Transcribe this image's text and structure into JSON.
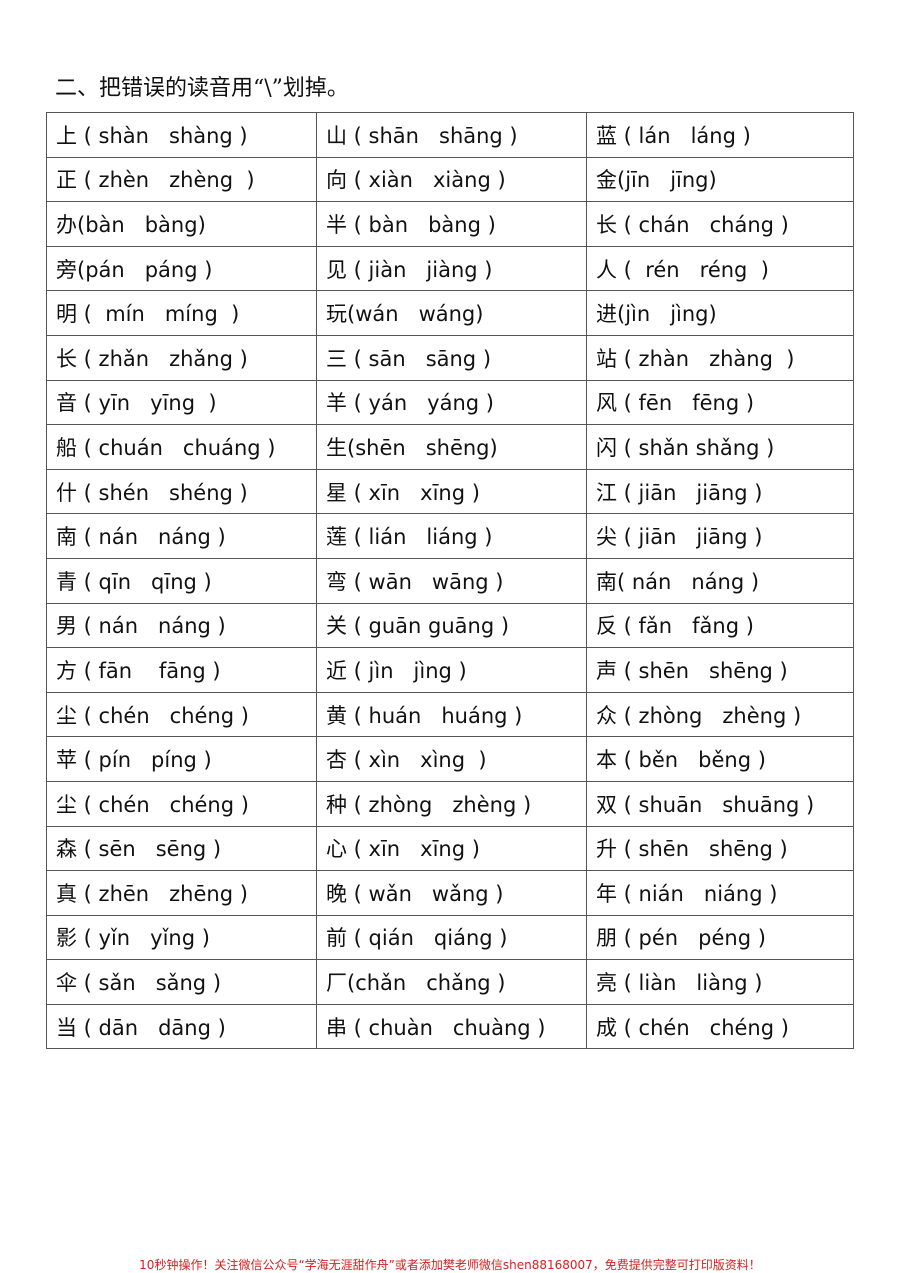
{
  "title": "二、把错误的读音用“\\”划掉。",
  "rows": [
    [
      "上 ( shàn   shàng )",
      "山 ( shān   shāng )",
      "蓝 ( lán   láng )"
    ],
    [
      "正 ( zhèn   zhèng  )",
      "向 ( xiàn   xiàng )",
      "金(jīn   jīng)"
    ],
    [
      "办(bàn   bàng)",
      "半 ( bàn   bàng )",
      "长 ( chán   cháng )"
    ],
    [
      "旁(pán   páng )",
      "见 ( jiàn   jiàng )",
      "人 (  rén   réng  )"
    ],
    [
      "明 (  mín   míng  )",
      "玩(wán   wáng)",
      "进(jìn   jìng)"
    ],
    [
      "长 ( zhǎn   zhǎng )",
      "三 ( sān   sāng )",
      "站 ( zhàn   zhàng  )"
    ],
    [
      "音 ( yīn   yīng  )",
      "羊 ( yán   yáng )",
      "风 ( fēn   fēng )"
    ],
    [
      "船 ( chuán   chuáng )",
      "生(shēn   shēng)",
      "闪 ( shǎn shǎng )"
    ],
    [
      "什 ( shén   shéng )",
      "星 ( xīn   xīng )",
      "江 ( jiān   jiāng )"
    ],
    [
      "南 ( nán   náng )",
      "莲 ( lián   liáng )",
      "尖 ( jiān   jiāng )"
    ],
    [
      "青 ( qīn   qīng )",
      "弯 ( wān   wāng )",
      "南( nán   náng )"
    ],
    [
      "男 ( nán   náng )",
      "关 ( guān guāng )",
      "反 ( fǎn   fǎng )"
    ],
    [
      "方 ( fān    fāng )",
      "近 ( jìn   jìng )",
      "声 ( shēn   shēng )"
    ],
    [
      "尘 ( chén   chéng )",
      "黄 ( huán   huáng )",
      "众 ( zhòng   zhèng )"
    ],
    [
      "苹 ( pín   píng )",
      "杏 ( xìn   xìng  )",
      "本 ( běn   běng )"
    ],
    [
      "尘 ( chén   chéng )",
      "种 ( zhòng   zhèng )",
      "双 ( shuān   shuāng )"
    ],
    [
      "森 ( sēn   sēng )",
      "心 ( xīn   xīng )",
      "升 ( shēn   shēng )"
    ],
    [
      "真 ( zhēn   zhēng )",
      "晚 ( wǎn   wǎng )",
      "年 ( nián   niáng )"
    ],
    [
      "影 ( yǐn   yǐng )",
      "前 ( qián   qiáng )",
      "朋 ( pén   péng )"
    ],
    [
      "伞 ( sǎn   sǎng )",
      "厂(chǎn   chǎng )",
      "亮 ( liàn   liàng )"
    ],
    [
      "当 ( dān   dāng )",
      "串 ( chuàn   chuàng )",
      "成 ( chén   chéng )"
    ]
  ],
  "footer": "10秒钟操作！关注微信公众号“学海无涯甜作舟”或者添加樊老师微信shen88168007，免费提供完整可打印版资料！"
}
